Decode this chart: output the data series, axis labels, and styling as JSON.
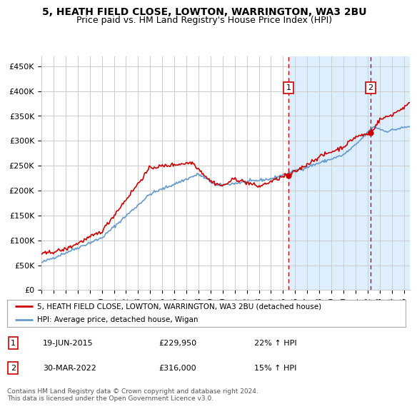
{
  "title": "5, HEATH FIELD CLOSE, LOWTON, WARRINGTON, WA3 2BU",
  "subtitle": "Price paid vs. HM Land Registry's House Price Index (HPI)",
  "legend_line1": "5, HEATH FIELD CLOSE, LOWTON, WARRINGTON, WA3 2BU (detached house)",
  "legend_line2": "HPI: Average price, detached house, Wigan",
  "annotation1_label": "1",
  "annotation1_date": "19-JUN-2015",
  "annotation1_price": "£229,950",
  "annotation1_pct": "22% ↑ HPI",
  "annotation2_label": "2",
  "annotation2_date": "30-MAR-2022",
  "annotation2_price": "£316,000",
  "annotation2_pct": "15% ↑ HPI",
  "footer": "Contains HM Land Registry data © Crown copyright and database right 2024.\nThis data is licensed under the Open Government Licence v3.0.",
  "price_color": "#cc0000",
  "hpi_color": "#6699cc",
  "background_color": "#ddeeff",
  "vline_color": "#cc0000",
  "marker_color": "#cc0000",
  "ylim": [
    0,
    470000
  ],
  "yticks": [
    0,
    50000,
    100000,
    150000,
    200000,
    250000,
    300000,
    350000,
    400000,
    450000
  ],
  "ytick_labels": [
    "£0",
    "£50K",
    "£100K",
    "£150K",
    "£200K",
    "£250K",
    "£300K",
    "£350K",
    "£400K",
    "£450K"
  ],
  "transaction1_x": 2015.47,
  "transaction1_y": 229950,
  "transaction2_x": 2022.25,
  "transaction2_y": 316000,
  "shade_start": 2015.47,
  "shade_end": 2025.5,
  "xlim_start": 1995,
  "xlim_end": 2025.5
}
